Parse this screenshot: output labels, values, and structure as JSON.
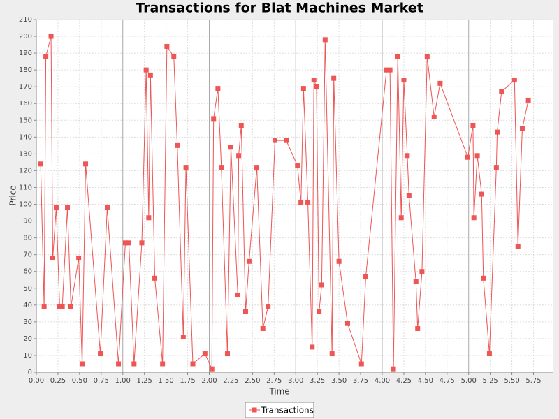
{
  "chart_data": {
    "type": "line",
    "title": "Transactions for Blat Machines Market",
    "x_label": "Time",
    "y_label": "Price",
    "grid": true,
    "xlim": [
      0,
      5.98
    ],
    "ylim": [
      0,
      210
    ],
    "xticks": [
      {
        "value": 0,
        "label": "0.00"
      },
      0.25,
      {
        "value": 0.5,
        "label": "0.50"
      },
      0.75,
      {
        "value": 1,
        "label": "1.00"
      },
      1.25,
      {
        "value": 1.5,
        "label": "1.50"
      },
      1.75,
      {
        "value": 2,
        "label": "2.00"
      },
      2.25,
      {
        "value": 2.5,
        "label": "2.50"
      },
      2.75,
      {
        "value": 3,
        "label": "3.00"
      },
      3.25,
      {
        "value": 3.5,
        "label": "3.50"
      },
      3.75,
      {
        "value": 4,
        "label": "4.00"
      },
      4.25,
      {
        "value": 4.5,
        "label": "4.50"
      },
      4.75,
      {
        "value": 5,
        "label": "5.00"
      },
      5.25,
      {
        "value": 5.5,
        "label": "5.50"
      },
      5.75
    ],
    "yticks": [
      0,
      10,
      20,
      30,
      40,
      50,
      60,
      70,
      80,
      90,
      100,
      110,
      120,
      130,
      140,
      150,
      160,
      170,
      180,
      190,
      200,
      210
    ],
    "x": [
      0.05,
      0.09,
      0.11,
      0.17,
      0.19,
      0.23,
      0.27,
      0.3,
      0.36,
      0.4,
      0.49,
      0.53,
      0.57,
      0.74,
      0.82,
      0.95,
      1.03,
      1.07,
      1.13,
      1.22,
      1.27,
      1.3,
      1.32,
      1.37,
      1.46,
      1.51,
      1.59,
      1.63,
      1.7,
      1.73,
      1.81,
      1.95,
      2.03,
      2.05,
      2.1,
      2.14,
      2.21,
      2.25,
      2.33,
      2.34,
      2.37,
      2.42,
      2.46,
      2.55,
      2.62,
      2.68,
      2.76,
      2.89,
      3.02,
      3.06,
      3.09,
      3.14,
      3.19,
      3.21,
      3.24,
      3.27,
      3.3,
      3.34,
      3.42,
      3.44,
      3.5,
      3.6,
      3.76,
      3.81,
      4.05,
      4.09,
      4.13,
      4.18,
      4.22,
      4.25,
      4.29,
      4.31,
      4.39,
      4.41,
      4.46,
      4.52,
      4.6,
      4.67,
      4.99,
      5.05,
      5.06,
      5.1,
      5.15,
      5.17,
      5.24,
      5.32,
      5.33,
      5.38,
      5.53,
      5.57,
      5.62,
      5.69
    ],
    "series": [
      {
        "name": "Transactions",
        "color": "#ee5555",
        "values": [
          124,
          39,
          188,
          200,
          68,
          98,
          39,
          39,
          98,
          39,
          68,
          5,
          124,
          11,
          98,
          5,
          77,
          77,
          5,
          77,
          180,
          92,
          177,
          56,
          5,
          194,
          188,
          135,
          21,
          122,
          5,
          11,
          2,
          151,
          169,
          122,
          11,
          134,
          46,
          129,
          147,
          36,
          66,
          122,
          26,
          39,
          138,
          138,
          123,
          101,
          169,
          101,
          15,
          174,
          170,
          36,
          52,
          198,
          11,
          175,
          66,
          29,
          5,
          57,
          180,
          180,
          2,
          188,
          92,
          174,
          129,
          105,
          54,
          26,
          60,
          188,
          152,
          172,
          128,
          147,
          92,
          129,
          106,
          56,
          11,
          122,
          143,
          167,
          174,
          75,
          145,
          162
        ]
      }
    ]
  }
}
